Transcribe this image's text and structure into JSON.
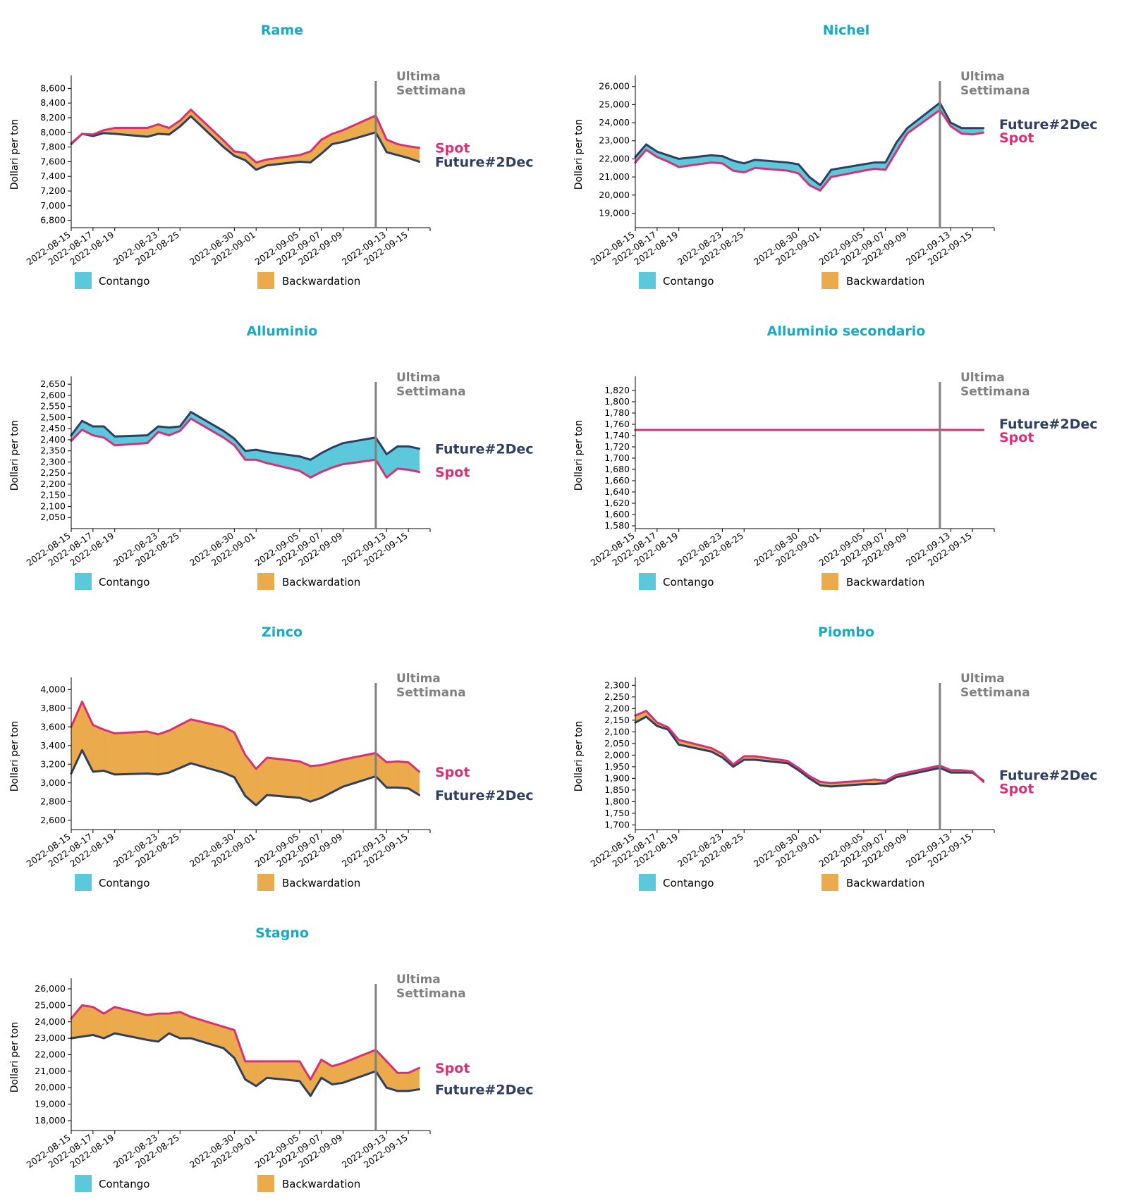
{
  "colors": {
    "contango": "#5BC8DC",
    "backwardation": "#EBAA4B",
    "spot": "#D63174",
    "future": "#2E3F5F",
    "title": "#18A9C5",
    "week_line": "#808080"
  },
  "common": {
    "ylabel": "Dollari per ton",
    "week_label": [
      "Ultima",
      "Settimana"
    ],
    "legend": {
      "contango": "Contango",
      "backwardation": "Backwardation"
    },
    "series_names": {
      "spot": "Spot",
      "future": "Future#2Dec"
    },
    "x_tick_labels": [
      "2022-08-15",
      "2022-08-17",
      "2022-08-19",
      "2022-08-23",
      "2022-08-25",
      "2022-08-30",
      "2022-09-01",
      "2022-09-05",
      "2022-09-07",
      "2022-09-09",
      "2022-09-13",
      "2022-09-15"
    ],
    "last_week_start": "2022-09-12"
  },
  "chart_data": [
    {
      "type": "area",
      "title": "Rame",
      "xlabel": "",
      "ylabel": "Dollari per ton",
      "ylim": [
        6700,
        8700
      ],
      "yticks": [
        6800,
        7000,
        7200,
        7400,
        7600,
        7800,
        8000,
        8200,
        8400,
        8600
      ],
      "x": [
        "2022-08-15",
        "2022-08-16",
        "2022-08-17",
        "2022-08-18",
        "2022-08-19",
        "2022-08-22",
        "2022-08-23",
        "2022-08-24",
        "2022-08-25",
        "2022-08-26",
        "2022-08-29",
        "2022-08-30",
        "2022-08-31",
        "2022-09-01",
        "2022-09-02",
        "2022-09-05",
        "2022-09-06",
        "2022-09-07",
        "2022-09-08",
        "2022-09-09",
        "2022-09-12",
        "2022-09-13",
        "2022-09-14",
        "2022-09-15",
        "2022-09-16"
      ],
      "series": [
        {
          "name": "Spot",
          "values": [
            7850,
            7980,
            7970,
            8030,
            8060,
            8060,
            8110,
            8060,
            8160,
            8310,
            7890,
            7740,
            7720,
            7590,
            7630,
            7690,
            7740,
            7900,
            7980,
            8030,
            8230,
            7900,
            7840,
            7810,
            7790
          ]
        },
        {
          "name": "Future#2Dec",
          "values": [
            7840,
            7980,
            7950,
            7990,
            7980,
            7940,
            7980,
            7970,
            8080,
            8220,
            7800,
            7680,
            7620,
            7490,
            7550,
            7600,
            7590,
            7710,
            7840,
            7870,
            8000,
            7730,
            7690,
            7650,
            7600
          ]
        }
      ]
    },
    {
      "type": "area",
      "title": "Nichel",
      "xlabel": "",
      "ylabel": "Dollari per ton",
      "ylim": [
        18200,
        26300
      ],
      "yticks": [
        19000,
        20000,
        21000,
        22000,
        23000,
        24000,
        25000,
        26000
      ],
      "x": [
        "2022-08-15",
        "2022-08-16",
        "2022-08-17",
        "2022-08-18",
        "2022-08-19",
        "2022-08-22",
        "2022-08-23",
        "2022-08-24",
        "2022-08-25",
        "2022-08-26",
        "2022-08-29",
        "2022-08-30",
        "2022-08-31",
        "2022-09-01",
        "2022-09-02",
        "2022-09-05",
        "2022-09-06",
        "2022-09-07",
        "2022-09-08",
        "2022-09-09",
        "2022-09-12",
        "2022-09-13",
        "2022-09-14",
        "2022-09-15",
        "2022-09-16"
      ],
      "series": [
        {
          "name": "Spot",
          "values": [
            21800,
            22500,
            22100,
            21850,
            21550,
            21800,
            21750,
            21350,
            21250,
            21500,
            21350,
            21200,
            20550,
            20250,
            21000,
            21350,
            21450,
            21400,
            22400,
            23400,
            24700,
            23800,
            23400,
            23350,
            23450
          ]
        },
        {
          "name": "Future#2Dec",
          "values": [
            22100,
            22800,
            22400,
            22200,
            22000,
            22200,
            22150,
            21900,
            21750,
            21950,
            21800,
            21700,
            21000,
            20550,
            21400,
            21700,
            21800,
            21800,
            22900,
            23700,
            25100,
            24000,
            23700,
            23700,
            23700
          ]
        }
      ]
    },
    {
      "type": "area",
      "title": "Alluminio",
      "xlabel": "",
      "ylabel": "Dollari per ton",
      "ylim": [
        2000,
        2660
      ],
      "yticks": [
        2050,
        2100,
        2150,
        2200,
        2250,
        2300,
        2350,
        2400,
        2450,
        2500,
        2550,
        2600,
        2650
      ],
      "x": [
        "2022-08-15",
        "2022-08-16",
        "2022-08-17",
        "2022-08-18",
        "2022-08-19",
        "2022-08-22",
        "2022-08-23",
        "2022-08-24",
        "2022-08-25",
        "2022-08-26",
        "2022-08-29",
        "2022-08-30",
        "2022-08-31",
        "2022-09-01",
        "2022-09-02",
        "2022-09-05",
        "2022-09-06",
        "2022-09-07",
        "2022-09-08",
        "2022-09-09",
        "2022-09-12",
        "2022-09-13",
        "2022-09-14",
        "2022-09-15",
        "2022-09-16"
      ],
      "series": [
        {
          "name": "Spot",
          "values": [
            2395,
            2445,
            2420,
            2410,
            2375,
            2385,
            2435,
            2420,
            2440,
            2495,
            2410,
            2375,
            2310,
            2310,
            2295,
            2260,
            2230,
            2255,
            2275,
            2290,
            2310,
            2230,
            2270,
            2265,
            2255
          ]
        },
        {
          "name": "Future#2Dec",
          "values": [
            2420,
            2485,
            2460,
            2460,
            2415,
            2420,
            2460,
            2455,
            2460,
            2525,
            2440,
            2405,
            2350,
            2355,
            2345,
            2325,
            2310,
            2340,
            2365,
            2385,
            2410,
            2335,
            2370,
            2370,
            2360
          ]
        }
      ]
    },
    {
      "type": "area",
      "title": "Alluminio secondario",
      "xlabel": "",
      "ylabel": "Dollari per ton",
      "ylim": [
        1575,
        1835
      ],
      "yticks": [
        1580,
        1600,
        1620,
        1640,
        1660,
        1680,
        1700,
        1720,
        1740,
        1760,
        1780,
        1800,
        1820
      ],
      "x": [
        "2022-08-15",
        "2022-09-16"
      ],
      "series": [
        {
          "name": "Spot",
          "values": [
            1750,
            1750
          ]
        },
        {
          "name": "Future#2Dec",
          "values": [
            1750,
            1750
          ]
        }
      ]
    },
    {
      "type": "area",
      "title": "Zinco",
      "xlabel": "",
      "ylabel": "Dollari per ton",
      "ylim": [
        2500,
        4070
      ],
      "yticks": [
        2600,
        2800,
        3000,
        3200,
        3400,
        3600,
        3800,
        4000
      ],
      "x": [
        "2022-08-15",
        "2022-08-16",
        "2022-08-17",
        "2022-08-18",
        "2022-08-19",
        "2022-08-22",
        "2022-08-23",
        "2022-08-24",
        "2022-08-25",
        "2022-08-26",
        "2022-08-29",
        "2022-08-30",
        "2022-08-31",
        "2022-09-01",
        "2022-09-02",
        "2022-09-05",
        "2022-09-06",
        "2022-09-07",
        "2022-09-08",
        "2022-09-09",
        "2022-09-12",
        "2022-09-13",
        "2022-09-14",
        "2022-09-15",
        "2022-09-16"
      ],
      "series": [
        {
          "name": "Spot",
          "values": [
            3600,
            3870,
            3620,
            3570,
            3530,
            3550,
            3520,
            3560,
            3620,
            3680,
            3600,
            3540,
            3300,
            3150,
            3270,
            3230,
            3180,
            3190,
            3220,
            3250,
            3320,
            3220,
            3230,
            3220,
            3120
          ]
        },
        {
          "name": "Future#2Dec",
          "values": [
            3100,
            3350,
            3120,
            3130,
            3090,
            3100,
            3090,
            3110,
            3160,
            3210,
            3110,
            3060,
            2860,
            2760,
            2870,
            2840,
            2800,
            2840,
            2900,
            2960,
            3070,
            2950,
            2950,
            2940,
            2870
          ]
        }
      ]
    },
    {
      "type": "area",
      "title": "Piombo",
      "xlabel": "",
      "ylabel": "Dollari per ton",
      "ylim": [
        1680,
        2310
      ],
      "yticks": [
        1700,
        1750,
        1800,
        1850,
        1900,
        1950,
        2000,
        2050,
        2100,
        2150,
        2200,
        2250,
        2300
      ],
      "x": [
        "2022-08-15",
        "2022-08-16",
        "2022-08-17",
        "2022-08-18",
        "2022-08-19",
        "2022-08-22",
        "2022-08-23",
        "2022-08-24",
        "2022-08-25",
        "2022-08-26",
        "2022-08-29",
        "2022-08-30",
        "2022-08-31",
        "2022-09-01",
        "2022-09-02",
        "2022-09-05",
        "2022-09-06",
        "2022-09-07",
        "2022-09-08",
        "2022-09-09",
        "2022-09-12",
        "2022-09-13",
        "2022-09-14",
        "2022-09-15",
        "2022-09-16"
      ],
      "series": [
        {
          "name": "Spot",
          "values": [
            2170,
            2190,
            2140,
            2120,
            2065,
            2030,
            2005,
            1960,
            1995,
            1995,
            1975,
            1945,
            1910,
            1885,
            1880,
            1890,
            1895,
            1890,
            1915,
            1925,
            1955,
            1935,
            1935,
            1930,
            1885
          ]
        },
        {
          "name": "Future#2Dec",
          "values": [
            2140,
            2165,
            2125,
            2110,
            2045,
            2015,
            1990,
            1950,
            1980,
            1980,
            1965,
            1935,
            1900,
            1870,
            1865,
            1875,
            1875,
            1880,
            1905,
            1915,
            1945,
            1925,
            1925,
            1925,
            1890
          ]
        }
      ]
    },
    {
      "type": "area",
      "title": "Stagno",
      "xlabel": "",
      "ylabel": "Dollari per ton",
      "ylim": [
        17400,
        26300
      ],
      "yticks": [
        18000,
        19000,
        20000,
        21000,
        22000,
        23000,
        24000,
        25000,
        26000
      ],
      "x": [
        "2022-08-15",
        "2022-08-16",
        "2022-08-17",
        "2022-08-18",
        "2022-08-19",
        "2022-08-22",
        "2022-08-23",
        "2022-08-24",
        "2022-08-25",
        "2022-08-26",
        "2022-08-29",
        "2022-08-30",
        "2022-08-31",
        "2022-09-01",
        "2022-09-02",
        "2022-09-05",
        "2022-09-06",
        "2022-09-07",
        "2022-09-08",
        "2022-09-09",
        "2022-09-12",
        "2022-09-13",
        "2022-09-14",
        "2022-09-15",
        "2022-09-16"
      ],
      "series": [
        {
          "name": "Spot",
          "values": [
            24200,
            25000,
            24900,
            24500,
            24900,
            24400,
            24500,
            24500,
            24600,
            24300,
            23700,
            23500,
            21600,
            21600,
            21600,
            21600,
            20500,
            21700,
            21300,
            21500,
            22300,
            21600,
            20900,
            20900,
            21200
          ]
        },
        {
          "name": "Future#2Dec",
          "values": [
            23000,
            23100,
            23200,
            23000,
            23300,
            22900,
            22800,
            23300,
            23000,
            23000,
            22400,
            21800,
            20500,
            20100,
            20600,
            20400,
            19500,
            20600,
            20200,
            20300,
            21000,
            20000,
            19800,
            19800,
            19900
          ]
        }
      ]
    }
  ]
}
